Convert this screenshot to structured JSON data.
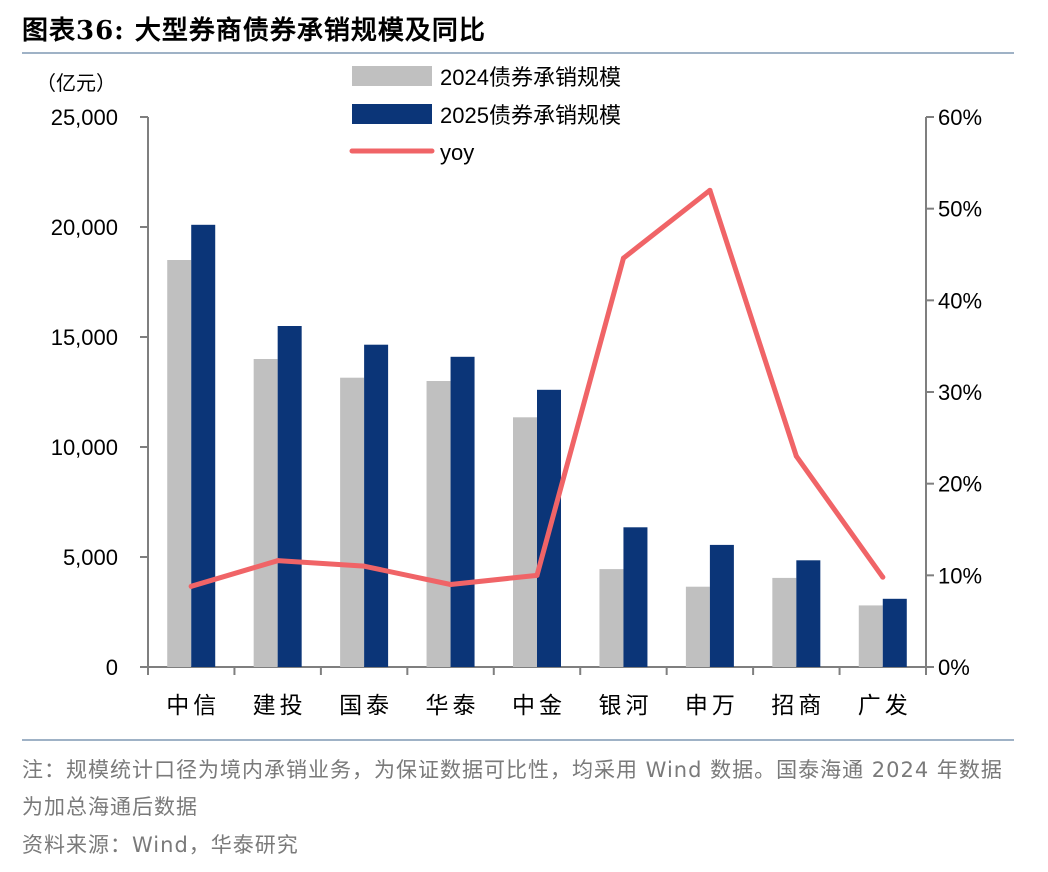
{
  "figure": {
    "title": "图表36:  大型券商债券承销规模及同比",
    "note": "注：规模统计口径为境内承销业务，为保证数据可比性，均采用 Wind 数据。国泰海通 2024 年数据为加总海通后数据",
    "source": "资料来源：Wind，华泰研究"
  },
  "chart_data": {
    "type": "bar",
    "title": "大型券商债券承销规模及同比",
    "unit_label": "（亿元）",
    "categories": [
      "中信",
      "建投",
      "国泰",
      "华泰",
      "中金",
      "银河",
      "申万",
      "招商",
      "广发"
    ],
    "series": [
      {
        "name": "2024债券承销规模",
        "type": "bar",
        "axis": "left",
        "color": "#c0c0c0",
        "values": [
          18500,
          14000,
          13150,
          13000,
          11350,
          4450,
          3650,
          4050,
          2800
        ]
      },
      {
        "name": "2025债券承销规模",
        "type": "bar",
        "axis": "left",
        "color": "#0b3578",
        "values": [
          20100,
          15500,
          14650,
          14100,
          12600,
          6350,
          5550,
          4850,
          3100
        ]
      },
      {
        "name": "yoy",
        "type": "line",
        "axis": "right",
        "color": "#f06467",
        "values": [
          8.8,
          11.6,
          11.0,
          9.0,
          10.0,
          44.6,
          52.0,
          23.0,
          9.8
        ]
      }
    ],
    "left_axis": {
      "min": 0,
      "max": 25000,
      "ticks": [
        "0",
        "5,000",
        "10,000",
        "15,000",
        "20,000",
        "25,000"
      ]
    },
    "right_axis": {
      "min": 0,
      "max": 60,
      "ticks": [
        "0%",
        "10%",
        "20%",
        "30%",
        "40%",
        "50%",
        "60%"
      ]
    },
    "legend_position": "top-center"
  }
}
